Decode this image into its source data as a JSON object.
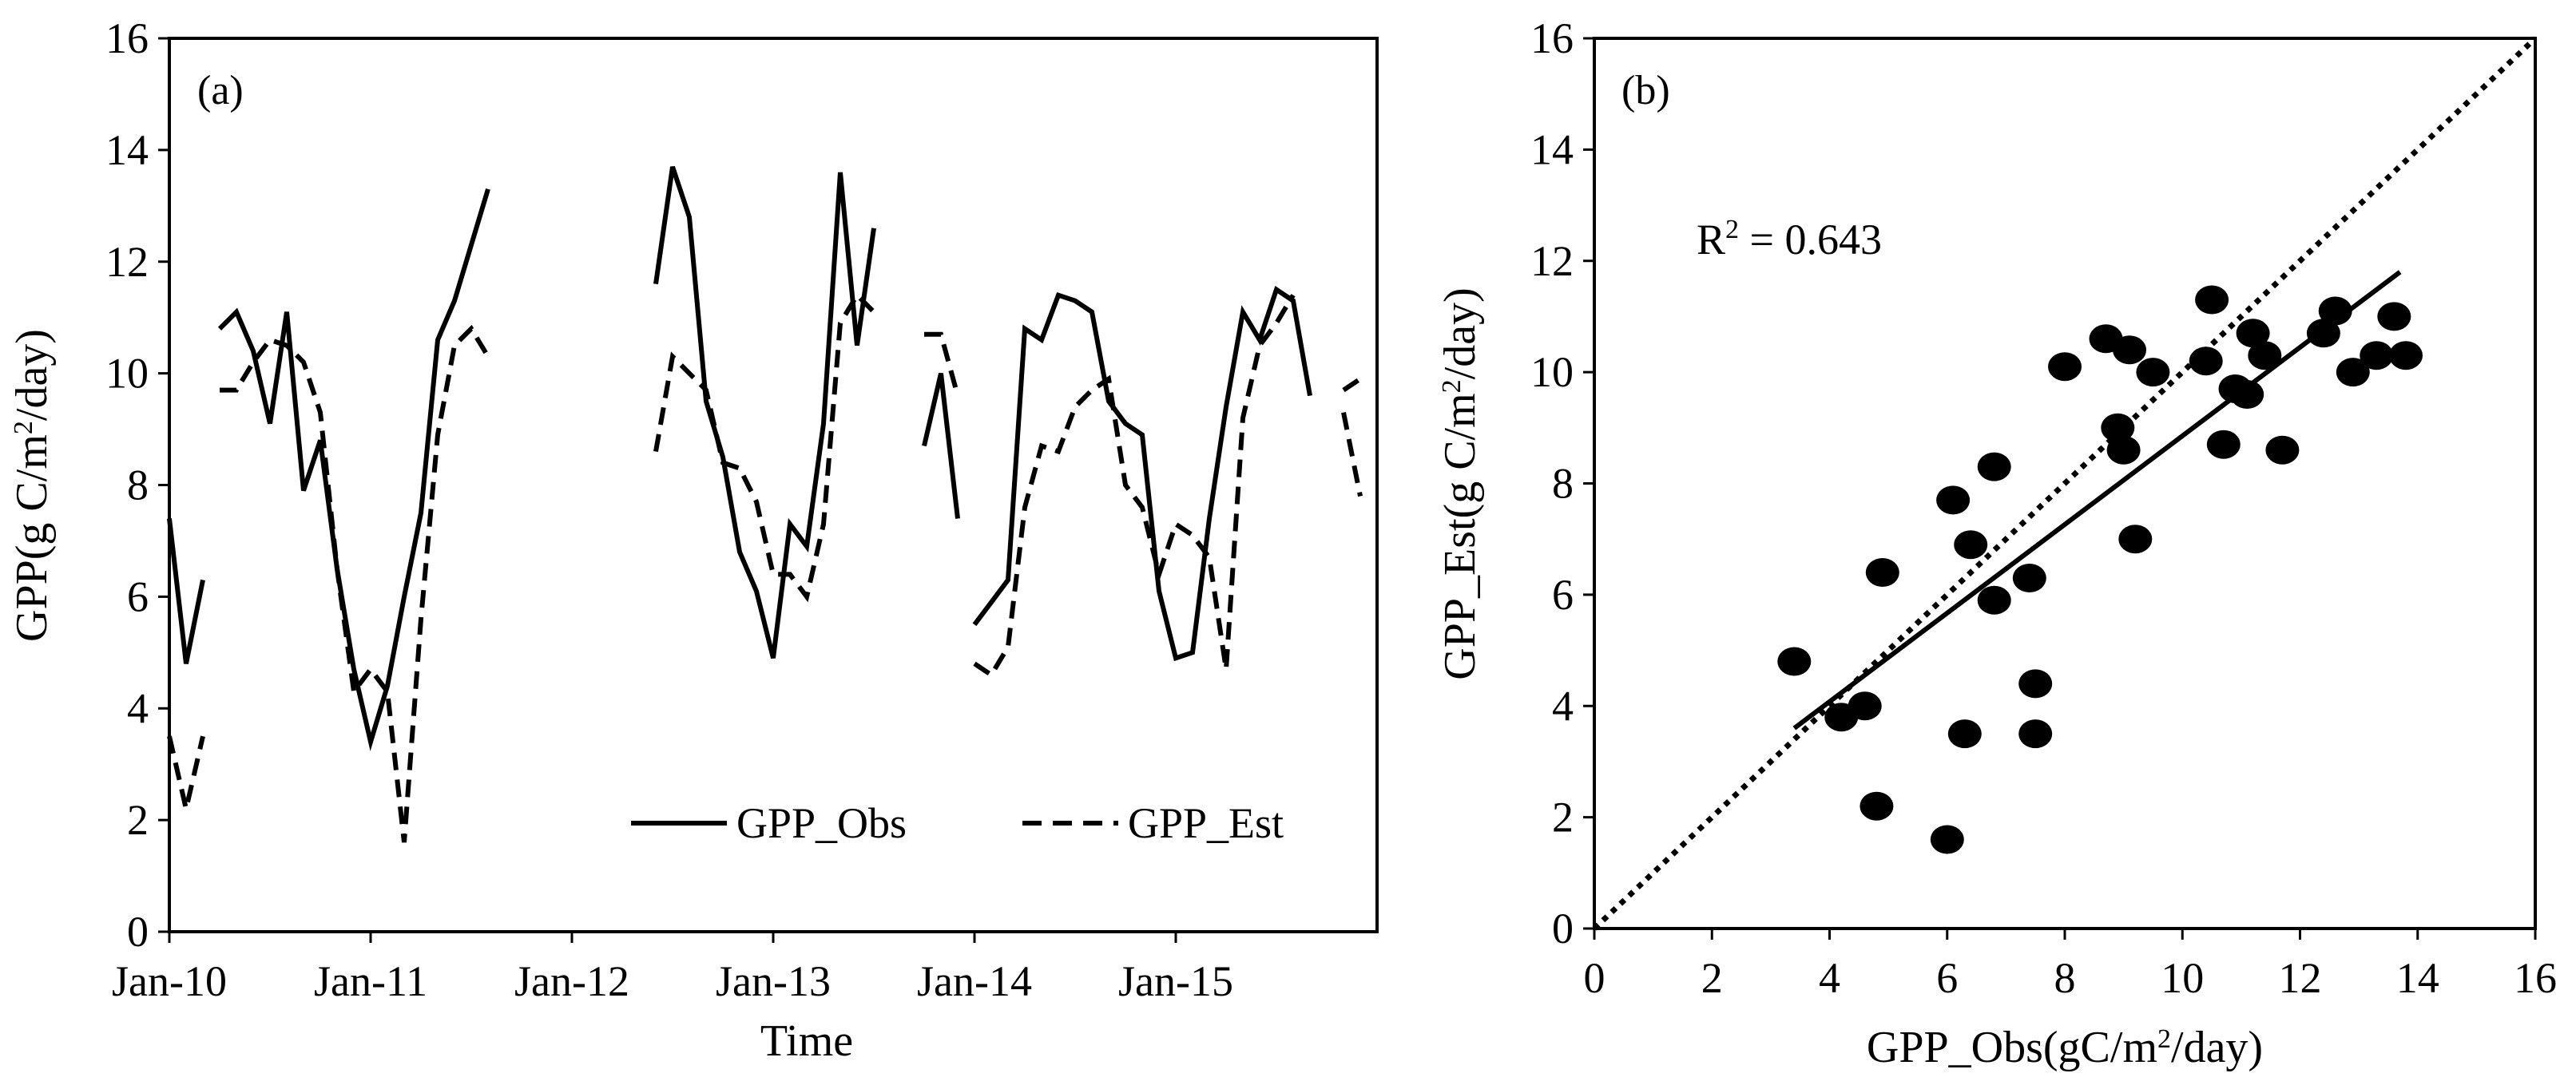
{
  "chart_data": [
    {
      "panel": "(a)",
      "type": "line",
      "xlabel": "Time",
      "ylabel": "GPP(g C/m2/day)",
      "ylim": [
        0,
        16
      ],
      "yticks": [
        0,
        2,
        4,
        6,
        8,
        10,
        12,
        14,
        16
      ],
      "xlim": [
        "2010-01",
        "2016-01"
      ],
      "xticks": [
        {
          "label": "Jan-10",
          "date": "2010-01"
        },
        {
          "label": "Jan-11",
          "date": "2011-01"
        },
        {
          "label": "Jan-12",
          "date": "2012-01"
        },
        {
          "label": "Jan-13",
          "date": "2013-01"
        },
        {
          "label": "Jan-14",
          "date": "2014-01"
        },
        {
          "label": "Jan-15",
          "date": "2015-01"
        }
      ],
      "grid": false,
      "legend": "bottom-right",
      "series": [
        {
          "name": "GPP_Obs",
          "style": "solid",
          "segments": [
            [
              [
                "2010-01",
                7.4
              ],
              [
                "2010-02",
                4.8
              ],
              [
                "2010-03",
                6.3
              ]
            ],
            [
              [
                "2010-04",
                10.8
              ],
              [
                "2010-05",
                11.1
              ],
              [
                "2010-06",
                10.4
              ],
              [
                "2010-07",
                9.1
              ],
              [
                "2010-08",
                11.1
              ],
              [
                "2010-09",
                7.9
              ],
              [
                "2010-10",
                8.8
              ],
              [
                "2010-11",
                6.5
              ],
              [
                "2010-12",
                4.7
              ],
              [
                "2011-01",
                3.4
              ],
              [
                "2011-02",
                4.4
              ],
              [
                "2011-03",
                6.0
              ],
              [
                "2011-04",
                7.5
              ],
              [
                "2011-05",
                10.6
              ],
              [
                "2011-06",
                11.3
              ],
              [
                "2011-07",
                12.3
              ],
              [
                "2011-08",
                13.3
              ]
            ],
            [
              [
                "2012-06",
                11.6
              ],
              [
                "2012-07",
                13.7
              ],
              [
                "2012-08",
                12.8
              ],
              [
                "2012-09",
                9.5
              ],
              [
                "2012-10",
                8.5
              ],
              [
                "2012-11",
                6.8
              ],
              [
                "2012-12",
                6.1
              ],
              [
                "2013-01",
                4.9
              ],
              [
                "2013-02",
                7.3
              ],
              [
                "2013-03",
                6.9
              ],
              [
                "2013-04",
                9.1
              ],
              [
                "2013-05",
                13.6
              ],
              [
                "2013-06",
                10.5
              ],
              [
                "2013-07",
                12.6
              ]
            ],
            [
              [
                "2013-10",
                8.7
              ],
              [
                "2013-11",
                10.0
              ],
              [
                "2013-12",
                7.4
              ]
            ],
            [
              [
                "2014-01",
                5.5
              ],
              [
                "2014-02",
                5.9
              ],
              [
                "2014-03",
                6.3
              ],
              [
                "2014-04",
                10.8
              ],
              [
                "2014-05",
                10.6
              ],
              [
                "2014-06",
                11.4
              ],
              [
                "2014-07",
                11.3
              ],
              [
                "2014-08",
                11.1
              ],
              [
                "2014-09",
                9.5
              ],
              [
                "2014-10",
                9.1
              ],
              [
                "2014-11",
                8.9
              ],
              [
                "2014-12",
                6.1
              ],
              [
                "2015-01",
                4.9
              ],
              [
                "2015-02",
                5.0
              ],
              [
                "2015-03",
                7.4
              ],
              [
                "2015-04",
                9.4
              ],
              [
                "2015-05",
                11.1
              ],
              [
                "2015-06",
                10.6
              ],
              [
                "2015-07",
                11.5
              ],
              [
                "2015-08",
                11.3
              ],
              [
                "2015-09",
                9.6
              ]
            ]
          ]
        },
        {
          "name": "GPP_Est",
          "style": "dashed",
          "segments": [
            [
              [
                "2010-01",
                3.5
              ],
              [
                "2010-02",
                2.2
              ],
              [
                "2010-03",
                3.5
              ]
            ],
            [
              [
                "2010-04",
                9.7
              ],
              [
                "2010-05",
                9.7
              ],
              [
                "2010-06",
                10.2
              ],
              [
                "2010-07",
                10.6
              ],
              [
                "2010-08",
                10.5
              ],
              [
                "2010-09",
                10.2
              ],
              [
                "2010-10",
                9.3
              ],
              [
                "2010-11",
                6.5
              ],
              [
                "2010-12",
                4.3
              ],
              [
                "2011-01",
                4.7
              ],
              [
                "2011-02",
                4.3
              ],
              [
                "2011-03",
                1.6
              ],
              [
                "2011-04",
                5.6
              ],
              [
                "2011-05",
                8.9
              ],
              [
                "2011-06",
                10.5
              ],
              [
                "2011-07",
                10.8
              ],
              [
                "2011-08",
                10.3
              ]
            ],
            [
              [
                "2012-06",
                8.6
              ],
              [
                "2012-07",
                10.3
              ],
              [
                "2012-08",
                10.0
              ],
              [
                "2012-09",
                9.7
              ],
              [
                "2012-10",
                8.4
              ],
              [
                "2012-11",
                8.3
              ],
              [
                "2012-12",
                7.7
              ],
              [
                "2013-01",
                6.4
              ],
              [
                "2013-02",
                6.4
              ],
              [
                "2013-03",
                6.0
              ],
              [
                "2013-04",
                7.3
              ],
              [
                "2013-05",
                10.9
              ],
              [
                "2013-06",
                11.4
              ],
              [
                "2013-07",
                11.1
              ]
            ],
            [
              [
                "2013-10",
                10.7
              ],
              [
                "2013-11",
                10.7
              ],
              [
                "2013-12",
                9.6
              ]
            ],
            [
              [
                "2014-01",
                4.8
              ],
              [
                "2014-02",
                4.6
              ],
              [
                "2014-03",
                5.1
              ],
              [
                "2014-04",
                7.6
              ],
              [
                "2014-05",
                8.7
              ],
              [
                "2014-06",
                8.6
              ],
              [
                "2014-07",
                9.4
              ],
              [
                "2014-08",
                9.7
              ],
              [
                "2014-09",
                9.9
              ],
              [
                "2014-10",
                8.0
              ],
              [
                "2014-11",
                7.6
              ],
              [
                "2014-12",
                6.4
              ],
              [
                "2015-01",
                7.3
              ],
              [
                "2015-02",
                7.1
              ],
              [
                "2015-03",
                6.7
              ],
              [
                "2015-04",
                4.7
              ],
              [
                "2015-05",
                9.2
              ],
              [
                "2015-06",
                10.5
              ],
              [
                "2015-07",
                10.9
              ],
              [
                "2015-08",
                11.4
              ]
            ],
            [
              [
                "2015-11",
                9.3
              ],
              [
                "2015-12",
                7.8
              ]
            ],
            [
              [
                "2015-11",
                9.7
              ],
              [
                "2015-12",
                9.9
              ]
            ]
          ]
        }
      ]
    },
    {
      "panel": "(b)",
      "type": "scatter",
      "xlabel": "GPP_Obs(gC/m2/day)",
      "ylabel": "GPP_Est(g C/m2/day)",
      "xlim": [
        0,
        16
      ],
      "ylim": [
        0,
        16
      ],
      "xticks": [
        0,
        2,
        4,
        6,
        8,
        10,
        12,
        14,
        16
      ],
      "yticks": [
        0,
        2,
        4,
        6,
        8,
        10,
        12,
        14,
        16
      ],
      "grid": false,
      "annotation": "R2 = 0.643",
      "points": [
        [
          3.4,
          4.8
        ],
        [
          4.2,
          3.8
        ],
        [
          4.6,
          4.0
        ],
        [
          4.8,
          2.2
        ],
        [
          4.9,
          6.4
        ],
        [
          6.0,
          1.6
        ],
        [
          6.1,
          7.7
        ],
        [
          6.3,
          3.5
        ],
        [
          6.4,
          6.9
        ],
        [
          6.8,
          5.9
        ],
        [
          6.8,
          8.3
        ],
        [
          7.4,
          6.3
        ],
        [
          7.5,
          4.4
        ],
        [
          7.5,
          3.5
        ],
        [
          8.0,
          10.1
        ],
        [
          8.7,
          10.6
        ],
        [
          8.9,
          9.0
        ],
        [
          9.0,
          8.6
        ],
        [
          9.1,
          10.4
        ],
        [
          9.2,
          7.0
        ],
        [
          9.5,
          10.0
        ],
        [
          10.4,
          10.2
        ],
        [
          10.5,
          11.3
        ],
        [
          10.7,
          8.7
        ],
        [
          10.9,
          9.7
        ],
        [
          11.1,
          9.6
        ],
        [
          11.2,
          10.7
        ],
        [
          11.4,
          10.3
        ],
        [
          11.7,
          8.6
        ],
        [
          12.4,
          10.7
        ],
        [
          12.6,
          11.1
        ],
        [
          12.9,
          10.0
        ],
        [
          13.3,
          10.3
        ],
        [
          13.6,
          11.0
        ],
        [
          13.8,
          10.3
        ]
      ],
      "regression_line": {
        "style": "solid",
        "from": [
          3.4,
          3.6
        ],
        "to": [
          13.7,
          11.8
        ]
      },
      "identity_line": {
        "style": "dotted",
        "from": [
          0,
          0
        ],
        "to": [
          16,
          16
        ]
      }
    }
  ]
}
